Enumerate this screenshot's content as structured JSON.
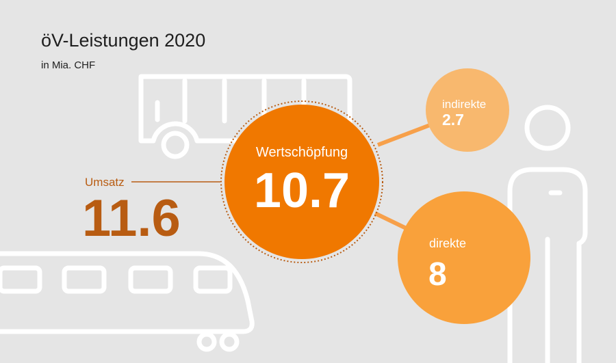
{
  "title": "öV-Leistungen 2020",
  "subtitle": "in Mia. CHF",
  "icons": [
    "bus-icon",
    "train-icon",
    "person-icon"
  ],
  "colors": {
    "background": "#e5e5e5",
    "umsatz_text": "#b85c12",
    "wertschoepfung": "#f07800",
    "direkte": "#f9a13b",
    "indirekte": "#f8b86e",
    "icon_stroke": "#ffffff",
    "connector": "#f7a04a"
  },
  "chart_data": {
    "type": "bubble",
    "title": "öV-Leistungen 2020",
    "subtitle": "in Mia. CHF",
    "umsatz": {
      "label": "Umsatz",
      "value": "11.6"
    },
    "wertschoepfung": {
      "label": "Wertschöpfung",
      "value": "10.7",
      "components": [
        {
          "label": "indirekte",
          "value": "2.7"
        },
        {
          "label": "direkte",
          "value": "8"
        }
      ]
    }
  }
}
